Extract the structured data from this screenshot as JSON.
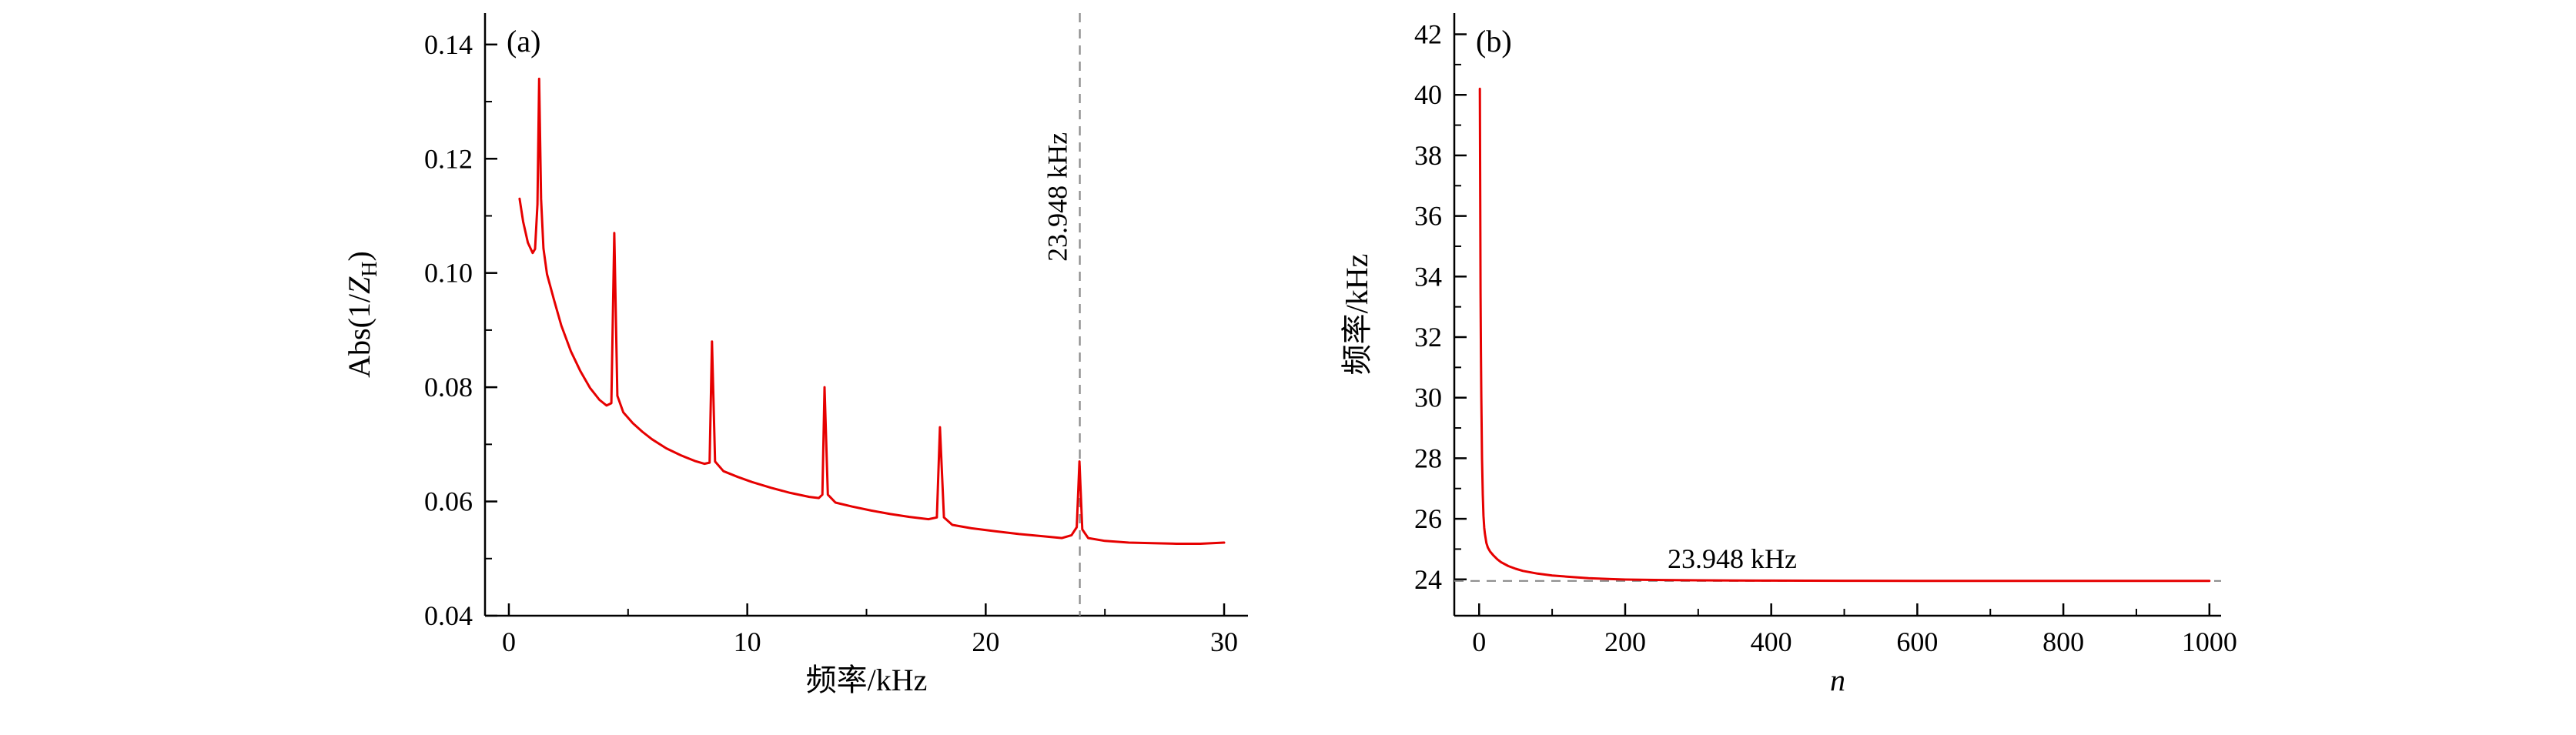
{
  "figure": {
    "background": "#ffffff",
    "panel_count": 2
  },
  "chart_data": [
    {
      "type": "line",
      "panel_label": "(a)",
      "xlabel": [
        {
          "t": "频率/kHz"
        }
      ],
      "ylabel": [
        {
          "t": "Abs(1/"
        },
        {
          "t": "Z",
          "italic": true
        },
        {
          "t": "H",
          "sub": true
        },
        {
          "t": ")"
        }
      ],
      "xlim": [
        -1,
        31
      ],
      "ylim": [
        0.04,
        0.1455
      ],
      "grid": false,
      "legend": "none",
      "xticks": {
        "major": [
          0,
          10,
          20,
          30
        ],
        "labels": [
          "0",
          "10",
          "20",
          "30"
        ],
        "minor": [
          5,
          15,
          25
        ]
      },
      "yticks": {
        "major": [
          0.04,
          0.06,
          0.08,
          0.1,
          0.12,
          0.14
        ],
        "labels": [
          "0.04",
          "0.06",
          "0.08",
          "0.10",
          "0.12",
          "0.14"
        ],
        "minor": [
          0.05,
          0.07,
          0.09,
          0.11,
          0.13
        ]
      },
      "series": [
        {
          "name": "admittance-curve",
          "color": "#e60000",
          "width": 3,
          "points": [
            [
              0.45,
              0.113
            ],
            [
              0.6,
              0.109
            ],
            [
              0.8,
              0.1053
            ],
            [
              1.0,
              0.1035
            ],
            [
              1.1,
              0.1042
            ],
            [
              1.2,
              0.112
            ],
            [
              1.27,
              0.134
            ],
            [
              1.35,
              0.113
            ],
            [
              1.45,
              0.1043
            ],
            [
              1.6,
              0.0998
            ],
            [
              1.9,
              0.0952
            ],
            [
              2.2,
              0.0908
            ],
            [
              2.6,
              0.0863
            ],
            [
              3.0,
              0.0828
            ],
            [
              3.4,
              0.0799
            ],
            [
              3.8,
              0.0778
            ],
            [
              4.1,
              0.0768
            ],
            [
              4.3,
              0.0772
            ],
            [
              4.42,
              0.107
            ],
            [
              4.55,
              0.0785
            ],
            [
              4.8,
              0.0756
            ],
            [
              5.2,
              0.0737
            ],
            [
              5.6,
              0.0722
            ],
            [
              6.0,
              0.0709
            ],
            [
              6.6,
              0.0693
            ],
            [
              7.2,
              0.0681
            ],
            [
              7.8,
              0.0671
            ],
            [
              8.2,
              0.0666
            ],
            [
              8.42,
              0.0668
            ],
            [
              8.52,
              0.088
            ],
            [
              8.65,
              0.067
            ],
            [
              9.0,
              0.0653
            ],
            [
              9.6,
              0.0643
            ],
            [
              10.2,
              0.0634
            ],
            [
              11.0,
              0.0624
            ],
            [
              11.8,
              0.0615
            ],
            [
              12.6,
              0.0608
            ],
            [
              13.0,
              0.0606
            ],
            [
              13.15,
              0.0612
            ],
            [
              13.24,
              0.08
            ],
            [
              13.38,
              0.0612
            ],
            [
              13.7,
              0.0598
            ],
            [
              14.4,
              0.0591
            ],
            [
              15.2,
              0.0584
            ],
            [
              16.0,
              0.0578
            ],
            [
              16.8,
              0.0573
            ],
            [
              17.6,
              0.0569
            ],
            [
              17.95,
              0.0572
            ],
            [
              18.08,
              0.073
            ],
            [
              18.25,
              0.0572
            ],
            [
              18.6,
              0.0559
            ],
            [
              19.4,
              0.0553
            ],
            [
              20.4,
              0.0548
            ],
            [
              21.4,
              0.0543
            ],
            [
              22.4,
              0.0539
            ],
            [
              23.2,
              0.0536
            ],
            [
              23.6,
              0.0541
            ],
            [
              23.82,
              0.0555
            ],
            [
              23.93,
              0.067
            ],
            [
              24.05,
              0.0551
            ],
            [
              24.3,
              0.0536
            ],
            [
              25.0,
              0.0531
            ],
            [
              26.0,
              0.0528
            ],
            [
              27.0,
              0.0527
            ],
            [
              28.0,
              0.0526
            ],
            [
              29.0,
              0.0526
            ],
            [
              30.0,
              0.0528
            ]
          ]
        }
      ],
      "ref_lines": [
        {
          "type": "vline",
          "at": 23.948,
          "color": "#8a8a8a",
          "dash": "12 9"
        }
      ],
      "labels": [
        {
          "text": "23.948 kHz",
          "x": 23.4,
          "y": 0.102,
          "rotation": -90,
          "anchor": "start"
        }
      ]
    },
    {
      "type": "line",
      "panel_label": "(b)",
      "xlabel": [
        {
          "t": "n",
          "italic": true
        }
      ],
      "ylabel": [
        {
          "t": "频率/kHz"
        }
      ],
      "xlim": [
        -34,
        1016
      ],
      "ylim": [
        22.8,
        42.7
      ],
      "grid": false,
      "legend": "none",
      "xticks": {
        "major": [
          0,
          200,
          400,
          600,
          800,
          1000
        ],
        "labels": [
          "0",
          "200",
          "400",
          "600",
          "800",
          "1000"
        ],
        "minor": [
          100,
          300,
          500,
          700,
          900
        ]
      },
      "yticks": {
        "major": [
          24,
          26,
          28,
          30,
          32,
          34,
          36,
          38,
          40,
          42
        ],
        "labels": [
          "24",
          "26",
          "28",
          "30",
          "32",
          "34",
          "36",
          "38",
          "40",
          "42"
        ],
        "minor": [
          25,
          27,
          29,
          31,
          33,
          35,
          37,
          39,
          41
        ]
      },
      "series": [
        {
          "name": "frequency-convergence-curve",
          "color": "#e60000",
          "width": 3,
          "points": [
            [
              1,
              40.2
            ],
            [
              1.5,
              36.5
            ],
            [
              2,
              33.5
            ],
            [
              2.5,
              31.5
            ],
            [
              3,
              30.0
            ],
            [
              3.5,
              28.9
            ],
            [
              4,
              28.0
            ],
            [
              5,
              26.8
            ],
            [
              6,
              26.1
            ],
            [
              7,
              25.7
            ],
            [
              8,
              25.5
            ],
            [
              10,
              25.2
            ],
            [
              12,
              25.05
            ],
            [
              15,
              24.92
            ],
            [
              20,
              24.78
            ],
            [
              25,
              24.66
            ],
            [
              30,
              24.57
            ],
            [
              40,
              24.44
            ],
            [
              50,
              24.35
            ],
            [
              60,
              24.28
            ],
            [
              80,
              24.19
            ],
            [
              100,
              24.13
            ],
            [
              120,
              24.09
            ],
            [
              150,
              24.04
            ],
            [
              180,
              24.01
            ],
            [
              200,
              23.995
            ],
            [
              250,
              23.978
            ],
            [
              300,
              23.968
            ],
            [
              350,
              23.962
            ],
            [
              400,
              23.958
            ],
            [
              500,
              23.954
            ],
            [
              600,
              23.951
            ],
            [
              700,
              23.95
            ],
            [
              800,
              23.949
            ],
            [
              900,
              23.949
            ],
            [
              1000,
              23.948
            ]
          ]
        }
      ],
      "ref_lines": [
        {
          "type": "hline",
          "at": 23.948,
          "color": "#8a8a8a",
          "dash": "12 9"
        }
      ],
      "labels": [
        {
          "text": "23.948 kHz",
          "x": 258,
          "y": 24.38,
          "rotation": 0,
          "anchor": "start"
        }
      ]
    }
  ]
}
